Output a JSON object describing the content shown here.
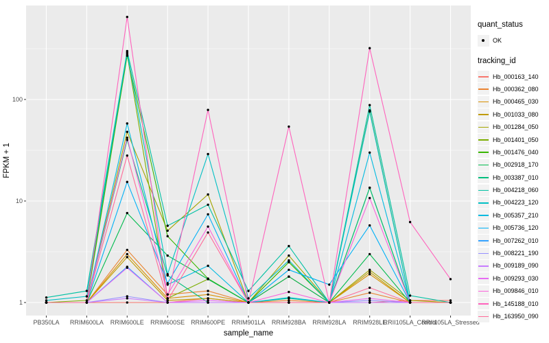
{
  "axes": {
    "x_title": "sample_name",
    "y_title": "FPKM + 1",
    "y_tick_labels": [
      "1",
      "10",
      "100"
    ]
  },
  "legend": {
    "quant_title": "quant_status",
    "quant_items": [
      {
        "label": "OK",
        "symbol": "black-point"
      }
    ],
    "tracking_title": "tracking_id"
  },
  "colors": {
    "panel_bg": "#EBEBEB",
    "grid": "#FFFFFF",
    "tick_label": "#4D4D4D",
    "tick_mark": "#333333",
    "point": "#000000",
    "legend_key_bg": "#F2F2F2"
  },
  "chart_data": {
    "type": "line",
    "title": "",
    "xlabel": "sample_name",
    "ylabel": "FPKM + 1",
    "y_scale": "log10",
    "ylim": [
      0.77,
      850
    ],
    "y_major_ticks": [
      1,
      10,
      100
    ],
    "y_minor_ticks": [
      3.162,
      31.62,
      316.2
    ],
    "grid": "white major+minor on grey panel, vertical line per category",
    "legend_position": "right",
    "point_marker": "black dot on every value",
    "categories": [
      "PB350LA",
      "RRIM600LA",
      "RRIM600LE",
      "RRIM600SE",
      "RRIM600PE",
      "RRIM901LA",
      "RRIM928BA",
      "RRIM928LA",
      "RRIM928LE",
      "RRII105LA_Control",
      "RRII105LA_Stressed"
    ],
    "series": [
      {
        "name": "Hb_000163_140",
        "color": "#F8766D",
        "values": [
          1,
          1,
          1,
          1,
          1.1,
          1,
          1.8,
          1,
          1,
          1.05,
          1.05
        ]
      },
      {
        "name": "Hb_000362_080",
        "color": "#EA8331",
        "values": [
          1,
          1,
          3.3,
          1.2,
          1.3,
          1,
          1.05,
          1,
          1.25,
          1,
          1
        ]
      },
      {
        "name": "Hb_000465_030",
        "color": "#D89000",
        "values": [
          1,
          1,
          3.0,
          1.1,
          1.2,
          1,
          1,
          1,
          1.9,
          1,
          1
        ]
      },
      {
        "name": "Hb_001033_080",
        "color": "#C09B00",
        "values": [
          1,
          1,
          2.8,
          1.05,
          1.1,
          1,
          1,
          1,
          2.0,
          1,
          1
        ]
      },
      {
        "name": "Hb_001284_050",
        "color": "#A3A500",
        "values": [
          1,
          1,
          48,
          5.1,
          11.6,
          1,
          2.9,
          1,
          2.1,
          1.05,
          1
        ]
      },
      {
        "name": "Hb_001401_050",
        "color": "#7CAE00",
        "values": [
          1,
          1.05,
          280,
          1.1,
          1.7,
          1,
          2.5,
          1,
          78,
          1,
          1
        ]
      },
      {
        "name": "Hb_001476_040",
        "color": "#39B600",
        "values": [
          1,
          1,
          270,
          4.5,
          1.72,
          1,
          2.5,
          1,
          13.5,
          1,
          1
        ]
      },
      {
        "name": "Hb_002918_170",
        "color": "#00BB4E",
        "values": [
          1,
          1,
          7.6,
          2.9,
          1.7,
          1,
          1.8,
          1,
          3.0,
          1,
          1
        ]
      },
      {
        "name": "Hb_003387_010",
        "color": "#00BF7D",
        "values": [
          1,
          1,
          40,
          1.85,
          1,
          1,
          1.1,
          1,
          13.5,
          1,
          1
        ]
      },
      {
        "name": "Hb_004218_060",
        "color": "#00C1A3",
        "values": [
          1.12,
          1.3,
          300,
          5.7,
          9.2,
          1.3,
          3.6,
          1,
          88,
          1.17,
          1
        ]
      },
      {
        "name": "Hb_004223_120",
        "color": "#00BFC4",
        "values": [
          1.05,
          1.15,
          290,
          1.9,
          29,
          1.1,
          2.6,
          1,
          76,
          1,
          1
        ]
      },
      {
        "name": "Hb_005357_210",
        "color": "#00BAE0",
        "values": [
          1,
          1,
          58,
          1.5,
          2.3,
          1,
          1.12,
          1,
          30,
          1,
          1
        ]
      },
      {
        "name": "Hb_005736_120",
        "color": "#00B0F6",
        "values": [
          1,
          1,
          15.4,
          1.55,
          7.4,
          1,
          2.1,
          1.5,
          5.75,
          1,
          1
        ]
      },
      {
        "name": "Hb_007262_010",
        "color": "#35A2FF",
        "values": [
          1,
          1,
          2.25,
          1,
          1,
          1,
          1,
          1,
          1,
          1,
          1
        ]
      },
      {
        "name": "Hb_008221_190",
        "color": "#9590FF",
        "values": [
          1,
          1,
          1.15,
          1,
          1,
          1,
          1,
          1,
          1.05,
          1,
          1
        ]
      },
      {
        "name": "Hb_009189_090",
        "color": "#C77CFF",
        "values": [
          1,
          1,
          1.1,
          1,
          1,
          1,
          1,
          1,
          1,
          1,
          1
        ]
      },
      {
        "name": "Hb_009293_030",
        "color": "#E76BF3",
        "values": [
          1,
          1,
          2.2,
          1,
          1.05,
          1,
          1,
          1,
          1.1,
          1,
          1
        ]
      },
      {
        "name": "Hb_009846_010",
        "color": "#FA62DB",
        "values": [
          1,
          1,
          42,
          1.2,
          5.6,
          1,
          1.27,
          1,
          10.7,
          1,
          1
        ]
      },
      {
        "name": "Hb_145188_010",
        "color": "#FF62BC",
        "values": [
          1,
          1,
          650,
          1.1,
          79,
          1,
          54,
          1,
          320,
          6.2,
          1.7
        ]
      },
      {
        "name": "Hb_163950_090",
        "color": "#FF6A98",
        "values": [
          1,
          1,
          28,
          1.05,
          4.9,
          1,
          1,
          1,
          1.4,
          1,
          1
        ]
      }
    ]
  }
}
